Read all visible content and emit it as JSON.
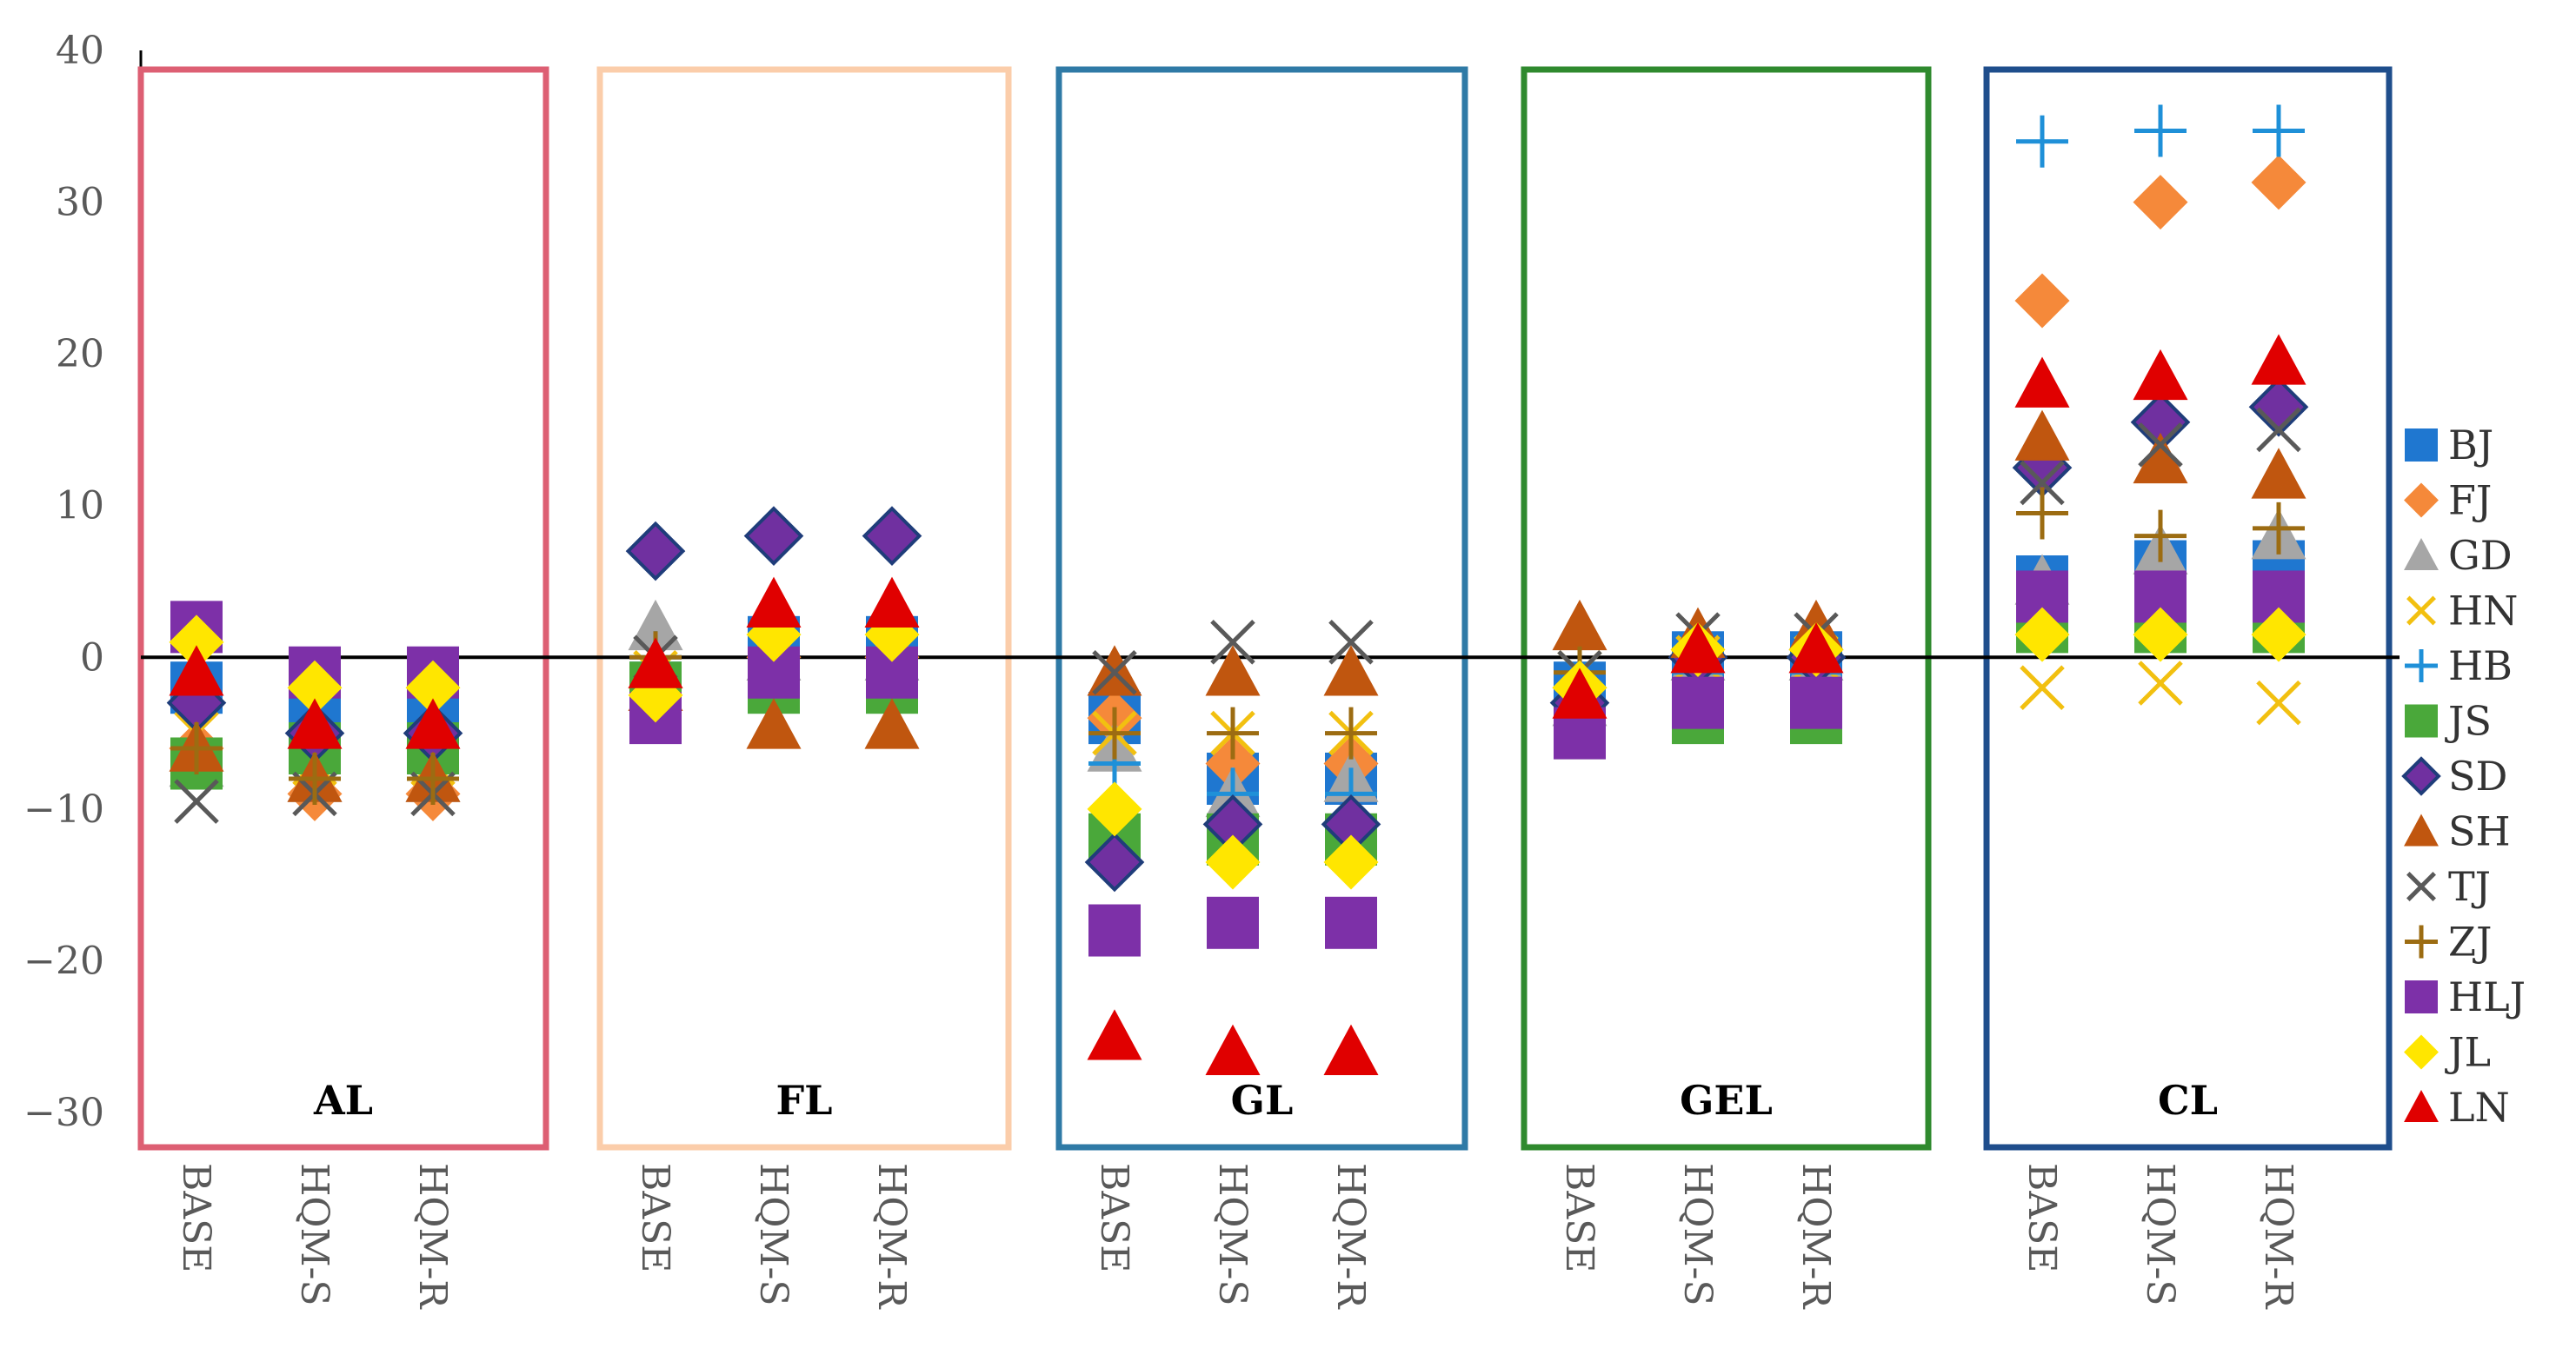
{
  "chart_data": {
    "type": "scatter",
    "title": "",
    "ylim": [
      -30,
      40
    ],
    "yticks": [
      40,
      30,
      20,
      10,
      0,
      -10,
      -20,
      -30
    ],
    "ytick_labels": [
      "40",
      "30",
      "20",
      "10",
      "0",
      "−10",
      "−20",
      "−30"
    ],
    "x_categories": [
      "BASE",
      "HQM-S",
      "HQM-R"
    ],
    "groups": [
      {
        "name": "AL",
        "color": "#dd5f73"
      },
      {
        "name": "FL",
        "color": "#fbcdaa"
      },
      {
        "name": "GL",
        "color": "#2f7aa6"
      },
      {
        "name": "GEL",
        "color": "#2f8a2e"
      },
      {
        "name": "CL",
        "color": "#1f4e8c"
      }
    ],
    "series": [
      {
        "name": "BJ",
        "marker": "square",
        "color": "#1f77d0",
        "values": [
          [
            -2,
            -4,
            -4
          ],
          [
            -2,
            1,
            1
          ],
          [
            -4,
            -8,
            -8
          ],
          [
            -2,
            0,
            0
          ],
          [
            5,
            6,
            6
          ]
        ]
      },
      {
        "name": "FJ",
        "marker": "diamond",
        "color": "#f5893a",
        "values": [
          [
            -6,
            -9,
            -9
          ],
          [
            -2,
            0,
            0
          ],
          [
            -4,
            -7,
            -7
          ],
          [
            -2,
            0,
            0
          ],
          [
            23.5,
            30,
            31.3
          ]
        ]
      },
      {
        "name": "GD",
        "marker": "triangle",
        "color": "#a6a6a6",
        "values": [
          [
            -7,
            -8,
            -8
          ],
          [
            2,
            0,
            0
          ],
          [
            -6,
            -9,
            -8
          ],
          [
            -3,
            0,
            0
          ],
          [
            5,
            7,
            8
          ]
        ]
      },
      {
        "name": "HN",
        "marker": "x",
        "color": "#f2c010",
        "values": [
          [
            -5,
            -7,
            -7
          ],
          [
            -1,
            -1,
            -1
          ],
          [
            -5,
            -5,
            -5
          ],
          [
            -1,
            0,
            0
          ],
          [
            -2,
            -1.7,
            -3
          ]
        ]
      },
      {
        "name": "HB",
        "marker": "plus",
        "color": "#1f90d8",
        "values": [
          [
            -3,
            -5,
            -5
          ],
          [
            0,
            0,
            0
          ],
          [
            -7,
            -9,
            -9
          ],
          [
            -2,
            -1,
            -1
          ],
          [
            34,
            34.7,
            34.7
          ]
        ]
      },
      {
        "name": "JS",
        "marker": "square",
        "color": "#4aa83a",
        "values": [
          [
            -7,
            -6,
            -6
          ],
          [
            -2,
            -2,
            -2
          ],
          [
            -12,
            -12,
            -12
          ],
          [
            -5,
            -4,
            -4
          ],
          [
            2,
            2,
            2
          ]
        ]
      },
      {
        "name": "SD",
        "marker": "diamond",
        "color": "#7030a0",
        "values": [
          [
            -3,
            -5,
            -5
          ],
          [
            7,
            8,
            8
          ],
          [
            -13.5,
            -11,
            -11
          ],
          [
            -3,
            0,
            0
          ],
          [
            12.5,
            15.5,
            16.5
          ]
        ]
      },
      {
        "name": "SH",
        "marker": "triangle",
        "color": "#c0560f",
        "values": [
          [
            -6,
            -8,
            -8
          ],
          [
            -2,
            -4.5,
            -4.5
          ],
          [
            -1,
            -1,
            -1
          ],
          [
            2,
            1.5,
            2
          ],
          [
            14.5,
            13,
            12
          ]
        ]
      },
      {
        "name": "TJ",
        "marker": "x",
        "color": "#595959",
        "values": [
          [
            -9.5,
            -9,
            -9
          ],
          [
            0,
            0,
            0
          ],
          [
            -1,
            1,
            1
          ],
          [
            -1,
            1.5,
            1.5
          ],
          [
            11.5,
            14,
            15
          ]
        ]
      },
      {
        "name": "ZJ",
        "marker": "plus",
        "color": "#9c6c12",
        "values": [
          [
            -6,
            -8,
            -8
          ],
          [
            0,
            0,
            0
          ],
          [
            -5,
            -5,
            -5
          ],
          [
            -1,
            0.5,
            0.5
          ],
          [
            9.5,
            8,
            8.5
          ]
        ]
      },
      {
        "name": "HLJ",
        "marker": "square",
        "color": "#7d30a8",
        "values": [
          [
            2,
            -1,
            -1
          ],
          [
            -4,
            -1,
            -1
          ],
          [
            -18,
            -17.5,
            -17.5
          ],
          [
            -5,
            -3,
            -3
          ],
          [
            4,
            4,
            4
          ]
        ]
      },
      {
        "name": "JL",
        "marker": "diamond",
        "color": "#ffe600",
        "values": [
          [
            1,
            -2,
            -2
          ],
          [
            -2.5,
            1.5,
            1.5
          ],
          [
            -10,
            -13.5,
            -13.5
          ],
          [
            -2,
            0.5,
            0.5
          ],
          [
            1.5,
            1.5,
            1.5
          ]
        ]
      },
      {
        "name": "LN",
        "marker": "triangle",
        "color": "#e00000",
        "values": [
          [
            -1,
            -4.5,
            -4.5
          ],
          [
            -0.5,
            3.5,
            3.5
          ],
          [
            -25,
            -26,
            -26
          ],
          [
            -2.5,
            0.5,
            0.5
          ],
          [
            18,
            18.5,
            19.5
          ]
        ]
      }
    ]
  }
}
